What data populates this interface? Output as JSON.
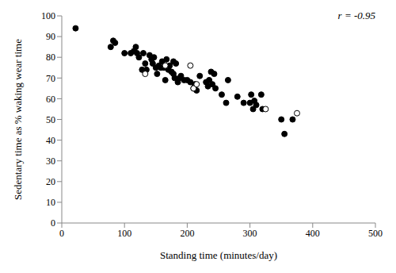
{
  "chart_data": {
    "type": "scatter",
    "x_label": "Standing time (minutes/day)",
    "y_label": "Sedentary time as % waking wear time",
    "annotation": "r = -0.95",
    "xlim": [
      0,
      500
    ],
    "xticks": [
      0,
      100,
      200,
      300,
      400,
      500
    ],
    "ylim": [
      0,
      100
    ],
    "yticks": [
      0,
      10,
      20,
      30,
      40,
      50,
      60,
      70,
      80,
      90,
      100
    ],
    "grid": false,
    "series": [
      {
        "color": "#000000",
        "marker": "filled",
        "x": [
          22,
          78,
          82,
          85,
          100,
          110,
          115,
          118,
          120,
          123,
          128,
          130,
          133,
          135,
          140,
          143,
          145,
          147,
          150,
          152,
          155,
          158,
          160,
          163,
          165,
          167,
          170,
          172,
          175,
          178,
          178,
          180,
          182,
          185,
          188,
          190,
          195,
          200,
          205,
          210,
          212,
          215,
          220,
          230,
          233,
          235,
          238,
          240,
          243,
          245,
          255,
          262,
          265,
          280,
          290,
          300,
          302,
          305,
          307,
          310,
          318,
          320,
          350,
          355,
          368
        ],
        "y": [
          94,
          85,
          88,
          87,
          82,
          82,
          83,
          85,
          82,
          80,
          74,
          82,
          77,
          74,
          81,
          79,
          77,
          80,
          75,
          72,
          76,
          75,
          78,
          75,
          69,
          79,
          74,
          76,
          73,
          72,
          78,
          70,
          77,
          68,
          70,
          71,
          69,
          69,
          68,
          65,
          67,
          64,
          71,
          68,
          66,
          69,
          73,
          67,
          72,
          65,
          62,
          58,
          69,
          61,
          58,
          58,
          62,
          55,
          59,
          57,
          62,
          55,
          50,
          43,
          50
        ]
      },
      {
        "color": "#000000",
        "marker": "open",
        "x": [
          133,
          165,
          205,
          210,
          215,
          325,
          375
        ],
        "y": [
          72,
          76,
          76,
          65,
          67,
          55,
          53
        ]
      }
    ]
  }
}
